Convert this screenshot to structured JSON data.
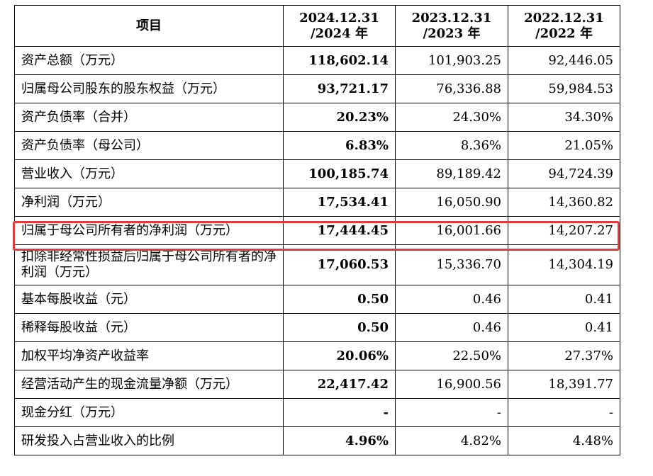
{
  "headers": [
    "项目",
    "2024.12.31\n/2024 年",
    "2023.12.31\n/2023 年",
    "2022.12.31\n/2022 年"
  ],
  "header_lines": [
    [
      "项目"
    ],
    [
      "2024.12.31",
      "/2024 年"
    ],
    [
      "2023.12.31",
      "/2023 年"
    ],
    [
      "2022.12.31",
      "/2022 年"
    ]
  ],
  "rows": [
    {
      "label": "资产总额（万元）",
      "v2024": "118,602.14",
      "v2023": "101,903.25",
      "v2022": "92,446.05"
    },
    {
      "label": "归属母公司股东的股东权益（万元）",
      "v2024": "93,721.17",
      "v2023": "76,336.88",
      "v2022": "59,984.53"
    },
    {
      "label": "资产负债率（合并）",
      "v2024": "20.23%",
      "v2023": "24.30%",
      "v2022": "34.30%"
    },
    {
      "label": "资产负债率（母公司）",
      "v2024": "6.83%",
      "v2023": "8.36%",
      "v2022": "21.05%"
    },
    {
      "label": "营业收入（万元）",
      "v2024": "100,185.74",
      "v2023": "89,189.42",
      "v2022": "94,724.39"
    },
    {
      "label": "净利润（万元）",
      "v2024": "17,534.41",
      "v2023": "16,050.90",
      "v2022": "14,360.82"
    },
    {
      "label": "归属于母公司所有者的净利润（万元）",
      "v2024": "17,444.45",
      "v2023": "16,001.66",
      "v2022": "14,207.27"
    },
    {
      "label": "扣除非经常性损益后归属于母公司所有者的净利润（万元）",
      "v2024": "17,060.53",
      "v2023": "15,336.70",
      "v2022": "14,304.19"
    },
    {
      "label": "基本每股收益（元）",
      "v2024": "0.50",
      "v2023": "0.46",
      "v2022": "0.41"
    },
    {
      "label": "稀释每股收益（元）",
      "v2024": "0.50",
      "v2023": "0.46",
      "v2022": "0.41"
    },
    {
      "label": "加权平均净资产收益率",
      "v2024": "20.06%",
      "v2023": "22.50%",
      "v2022": "27.37%"
    },
    {
      "label": "经营活动产生的现金流量净额（万元）",
      "v2024": "22,417.42",
      "v2023": "16,900.56",
      "v2022": "18,391.77"
    },
    {
      "label": "现金分红（万元）",
      "v2024": "-",
      "v2023": "-",
      "v2022": "-"
    },
    {
      "label": "研发投入占营业收入的比例",
      "v2024": "4.96%",
      "v2023": "4.82%",
      "v2022": "4.48%"
    }
  ],
  "highlight_color": "#e23b3b"
}
